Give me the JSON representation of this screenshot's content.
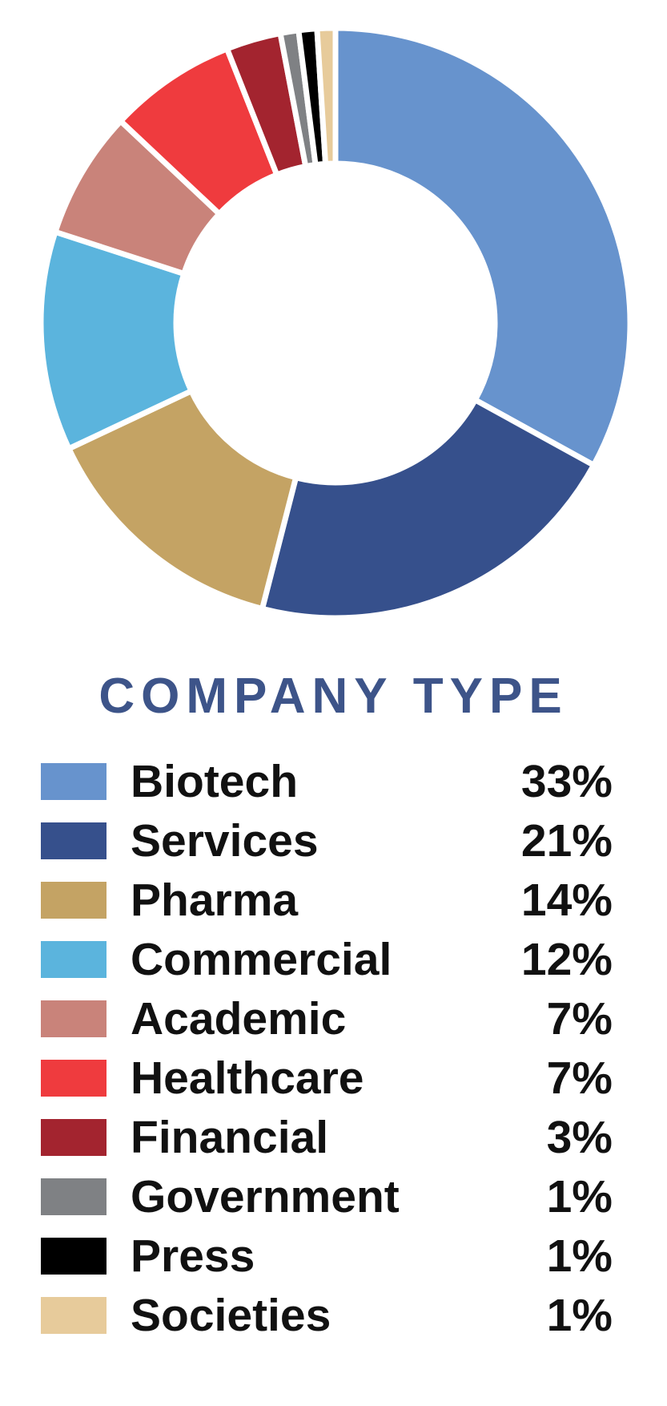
{
  "chart_data": {
    "type": "pie",
    "subtype": "donut",
    "title": "COMPANY TYPE",
    "title_color": "#3D5489",
    "categories": [
      "Biotech",
      "Services",
      "Pharma",
      "Commercial",
      "Academic",
      "Healthcare",
      "Financial",
      "Government",
      "Press",
      "Societies"
    ],
    "values": [
      33,
      21,
      14,
      12,
      7,
      7,
      3,
      1,
      1,
      1
    ],
    "unit": "%",
    "colors": [
      "#6793CD",
      "#36508C",
      "#C4A364",
      "#5BB4DD",
      "#C9837A",
      "#EF3B3E",
      "#A3242F",
      "#7F8184",
      "#000000",
      "#E7CB9B"
    ],
    "start_angle_deg": 0,
    "direction": "clockwise",
    "inner_radius_ratio": 0.54,
    "slice_gap_color": "#FFFFFF",
    "legend_position": "bottom",
    "background": "#FFFFFF"
  },
  "legend": {
    "items": [
      {
        "label": "Biotech",
        "value": "33%"
      },
      {
        "label": "Services",
        "value": "21%"
      },
      {
        "label": "Pharma",
        "value": "14%"
      },
      {
        "label": "Commercial",
        "value": "12%"
      },
      {
        "label": "Academic",
        "value": "7%"
      },
      {
        "label": "Healthcare",
        "value": "7%"
      },
      {
        "label": "Financial",
        "value": "3%"
      },
      {
        "label": "Government",
        "value": "1%"
      },
      {
        "label": "Press",
        "value": "1%"
      },
      {
        "label": "Societies",
        "value": "1%"
      }
    ]
  }
}
